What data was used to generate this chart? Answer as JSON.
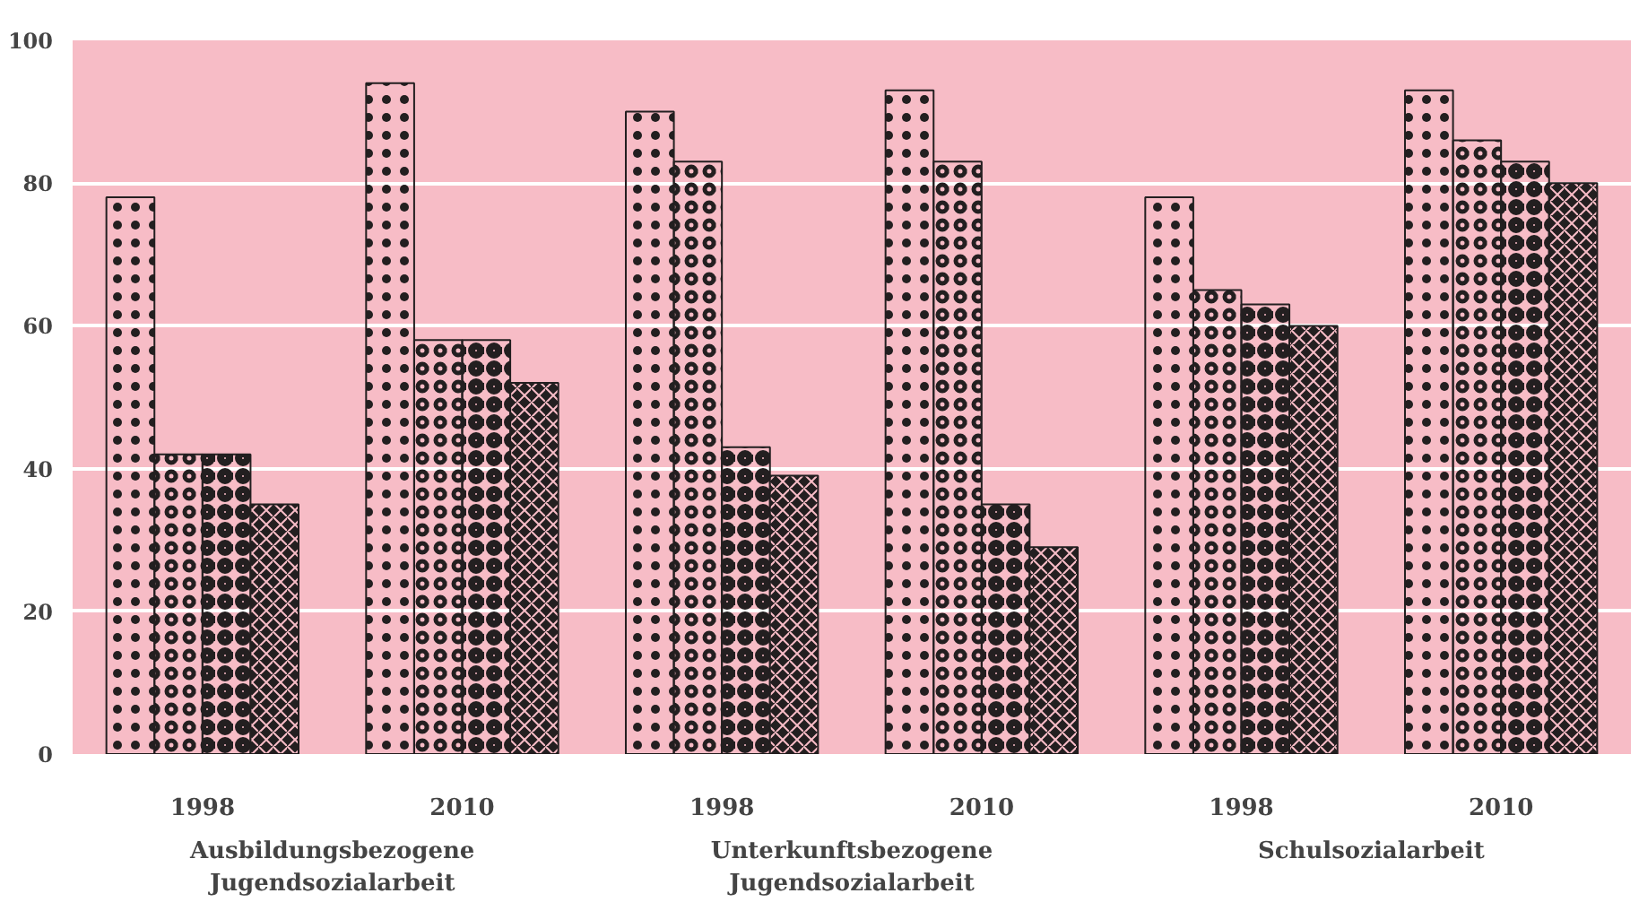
{
  "chart_data": {
    "type": "bar",
    "categories": [
      "1998",
      "2010",
      "1998",
      "2010",
      "1998",
      "2010"
    ],
    "series": [
      {
        "color": "#231f20",
        "values": [
          78,
          94,
          90,
          93,
          78,
          93
        ]
      },
      {
        "color": "#231f20",
        "values": [
          42,
          58,
          83,
          83,
          65,
          86
        ]
      },
      {
        "color": "#231f20",
        "values": [
          42,
          58,
          43,
          35,
          63,
          83
        ]
      },
      {
        "color": "#231f20",
        "values": [
          35,
          52,
          39,
          29,
          60,
          80
        ]
      }
    ],
    "ylim": [
      0,
      100
    ],
    "yticks": [
      0,
      20,
      40,
      60,
      80,
      100
    ],
    "grid": "y",
    "annotations": [
      "Ausbildungsbezogene\nJugendsozialarbeit",
      "Unterkunftsbezogene\nJugendsozialarbeit",
      "Schulsozialarbeit"
    ]
  }
}
